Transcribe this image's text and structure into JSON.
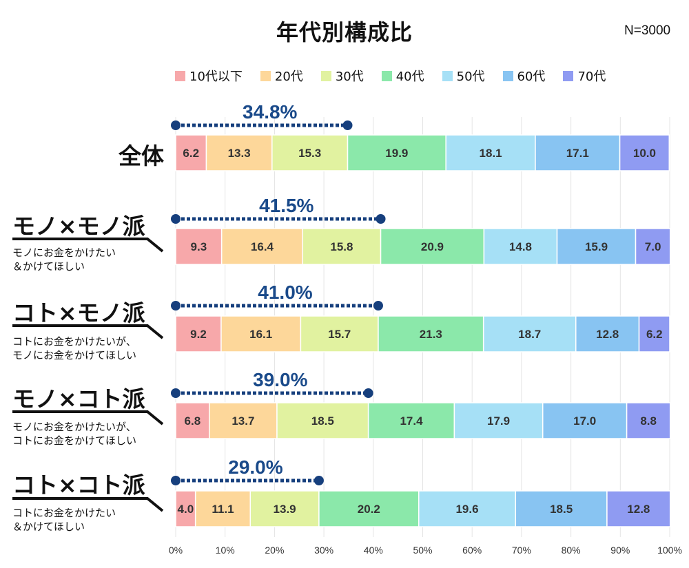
{
  "chart_data": {
    "type": "bar",
    "orientation": "horizontal-stacked-100",
    "title": "年代別構成比",
    "sample_size": "N=3000",
    "legend": [
      "10代以下",
      "20代",
      "30代",
      "40代",
      "50代",
      "60代",
      "70代"
    ],
    "colors": [
      "#f7a8aa",
      "#fdd79a",
      "#e1f2a0",
      "#8be8aa",
      "#a6e0f6",
      "#88c4f2",
      "#8f9bf2"
    ],
    "xlim": [
      0,
      100
    ],
    "x_ticks": [
      "0%",
      "10%",
      "20%",
      "30%",
      "40%",
      "50%",
      "60%",
      "70%",
      "80%",
      "90%",
      "100%"
    ],
    "groups": [
      {
        "name": "全体",
        "desc": "",
        "total_label": "34.8%",
        "total": 34.8,
        "values": [
          6.2,
          13.3,
          15.3,
          19.9,
          18.1,
          17.1,
          10.0
        ],
        "labels": [
          "6.2",
          "13.3",
          "15.3",
          "19.9",
          "18.1",
          "17.1",
          "10.0"
        ]
      },
      {
        "name": "モノ×モノ派",
        "desc": "モノにお金をかけたい\n＆かけてほしい",
        "total_label": "41.5%",
        "total": 41.5,
        "values": [
          9.3,
          16.4,
          15.8,
          20.9,
          14.8,
          15.9,
          7.0
        ],
        "labels": [
          "9.3",
          "16.4",
          "15.8",
          "20.9",
          "14.8",
          "15.9",
          "7.0"
        ]
      },
      {
        "name": "コト×モノ派",
        "desc": "コトにお金をかけたいが、\nモノにお金をかけてほしい",
        "total_label": "41.0%",
        "total": 41.0,
        "values": [
          9.2,
          16.1,
          15.7,
          21.3,
          18.7,
          12.8,
          6.2
        ],
        "labels": [
          "9.2",
          "16.1",
          "15.7",
          "21.3",
          "18.7",
          "12.8",
          "6.2"
        ]
      },
      {
        "name": "モノ×コト派",
        "desc": "モノにお金をかけたいが、\nコトにお金をかけてほしい",
        "total_label": "39.0%",
        "total": 39.0,
        "values": [
          6.8,
          13.7,
          18.5,
          17.4,
          17.9,
          17.0,
          8.8
        ],
        "labels": [
          "6.8",
          "13.7",
          "18.5",
          "17.4",
          "17.9",
          "17.0",
          "8.8"
        ]
      },
      {
        "name": "コト×コト派",
        "desc": "コトにお金をかけたい\n＆かけてほしい",
        "total_label": "29.0%",
        "total": 29.0,
        "values": [
          4.0,
          11.1,
          13.9,
          20.2,
          19.6,
          18.5,
          12.8
        ],
        "labels": [
          "4.0",
          "11.1",
          "13.9",
          "20.2",
          "19.6",
          "18.5",
          "12.8"
        ]
      }
    ],
    "dotted_line_color": "#163f7d"
  }
}
